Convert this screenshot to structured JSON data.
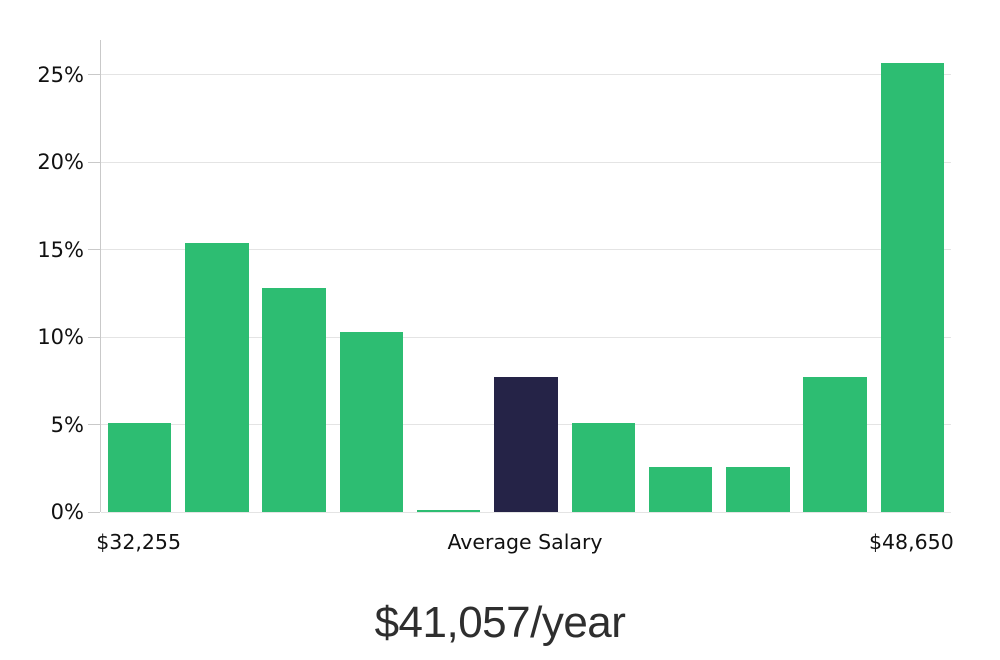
{
  "chart_data": {
    "type": "bar",
    "title": "$41,057/year",
    "xlabel": "",
    "ylabel": "",
    "values": [
      5.1,
      15.4,
      12.8,
      10.3,
      0.1,
      7.7,
      5.1,
      2.6,
      2.6,
      7.7,
      25.7
    ],
    "highlight_index": 5,
    "x_tick_labels": [
      {
        "index": 0,
        "label": "$32,255"
      },
      {
        "index": 5,
        "label": "Average Salary"
      },
      {
        "index": 10,
        "label": "$48,650"
      }
    ],
    "y_ticks": [
      {
        "value": 0,
        "label": "0%"
      },
      {
        "value": 5,
        "label": "5%"
      },
      {
        "value": 10,
        "label": "10%"
      },
      {
        "value": 15,
        "label": "15%"
      },
      {
        "value": 20,
        "label": "20%"
      },
      {
        "value": 25,
        "label": "25%"
      }
    ],
    "ylim": [
      0,
      27
    ],
    "grid": "horizontal",
    "legend": "none",
    "colors": {
      "bar": "#2dbd72",
      "highlight": "#252347",
      "gridline": "#e4e4e4",
      "axis": "#c9c9c9",
      "tick_text": "#111111",
      "title_text": "#2e2e2e"
    }
  }
}
